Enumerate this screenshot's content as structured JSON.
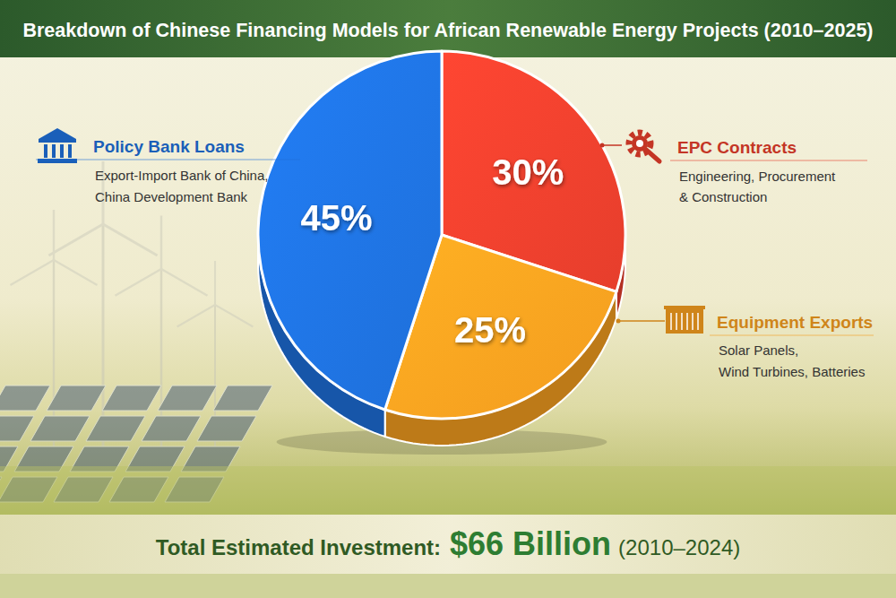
{
  "chart_data": {
    "type": "pie",
    "title": "Breakdown of Chinese Financing Models for African Renewable Energy Projects (2010–2025)",
    "categories": [
      "EPC Contracts",
      "Equipment Exports",
      "Policy Bank Loans"
    ],
    "category_descriptions": [
      [
        "Engineering, Procurement",
        "& Construction"
      ],
      [
        "Solar Panels,",
        "Wind Turbines, Batteries"
      ],
      [
        "Export-Import Bank of China,",
        "China Development Bank"
      ]
    ],
    "values": [
      30,
      25,
      45
    ],
    "value_labels": [
      "30%",
      "25%",
      "45%"
    ],
    "colors": [
      "#e63e2c",
      "#f39c1f",
      "#1e6fd9"
    ],
    "data_labels": true,
    "footer": {
      "label": "Total Estimated Investment:",
      "value": "$66 Billion",
      "period": "(2010–2024)"
    }
  }
}
